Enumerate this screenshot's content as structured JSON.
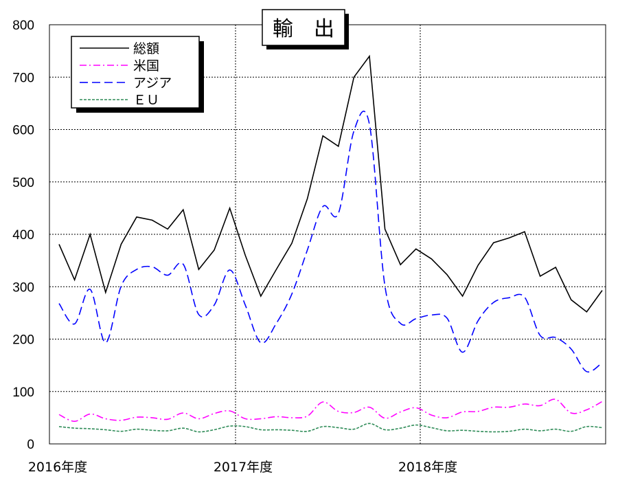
{
  "chart_data": {
    "type": "line",
    "title": "輸　出",
    "xlabel": "",
    "ylabel": "",
    "ylim": [
      0,
      800
    ],
    "yticks": [
      "0",
      "100",
      "200",
      "300",
      "400",
      "500",
      "600",
      "700",
      "800"
    ],
    "xtick_labels": [
      "2016年度",
      "2017年度",
      "2018年度"
    ],
    "grid": true,
    "legend_position": "top-left",
    "x": [
      1,
      2,
      3,
      4,
      5,
      6,
      7,
      8,
      9,
      10,
      11,
      12,
      13,
      14,
      15,
      16,
      17,
      18,
      19,
      20,
      21,
      22,
      23,
      24,
      25,
      26,
      27,
      28,
      29,
      30,
      31,
      32,
      33,
      34,
      35,
      36
    ],
    "series": [
      {
        "name": "総額",
        "color": "#000000",
        "dash": "solid",
        "values": [
          381,
          313,
          400,
          289,
          381,
          433,
          427,
          410,
          447,
          333,
          370,
          450,
          360,
          282,
          333,
          383,
          468,
          588,
          568,
          700,
          740,
          410,
          342,
          372,
          353,
          323,
          282,
          341,
          384,
          393,
          405,
          320,
          337,
          275,
          252,
          293
        ]
      },
      {
        "name": "米国",
        "color": "#ff00ff",
        "dash": "dashdot",
        "values": [
          56,
          43,
          57,
          48,
          45,
          51,
          50,
          47,
          59,
          48,
          58,
          63,
          48,
          48,
          52,
          50,
          53,
          80,
          62,
          60,
          70,
          49,
          61,
          69,
          55,
          50,
          61,
          62,
          70,
          70,
          76,
          73,
          85,
          59,
          65,
          81
        ]
      },
      {
        "name": "アジア",
        "color": "#0000ff",
        "dash": "dashed",
        "values": [
          268,
          229,
          295,
          193,
          301,
          333,
          338,
          322,
          343,
          247,
          265,
          332,
          265,
          193,
          230,
          286,
          370,
          453,
          440,
          597,
          610,
          301,
          230,
          239,
          246,
          240,
          175,
          235,
          270,
          279,
          280,
          207,
          203,
          181,
          138,
          155
        ]
      },
      {
        "name": "ＥＵ",
        "color": "#2e8b57",
        "dash": "dotted",
        "values": [
          33,
          30,
          29,
          27,
          24,
          28,
          26,
          25,
          30,
          23,
          27,
          34,
          33,
          27,
          27,
          26,
          24,
          33,
          31,
          28,
          39,
          27,
          30,
          36,
          31,
          25,
          26,
          24,
          23,
          24,
          28,
          25,
          28,
          24,
          33,
          31
        ]
      }
    ]
  }
}
